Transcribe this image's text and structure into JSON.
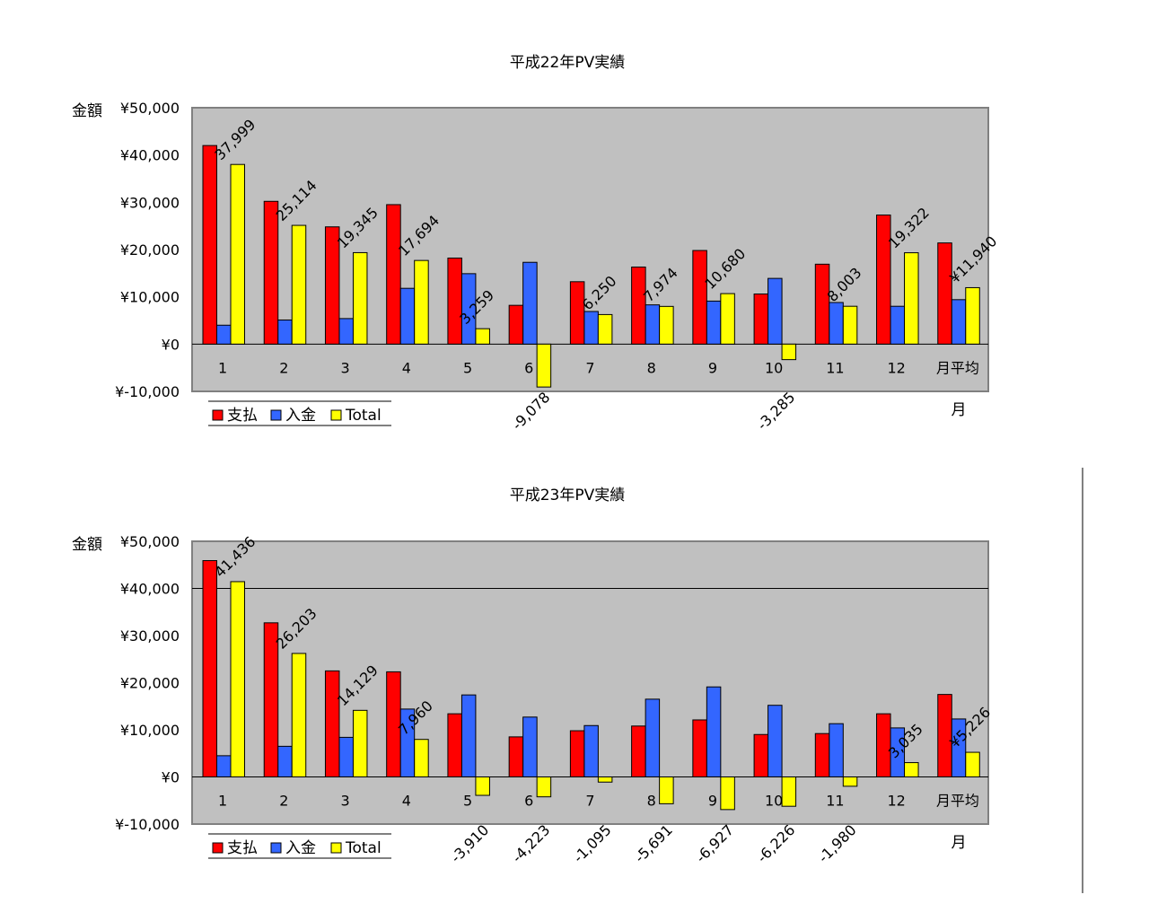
{
  "colors": {
    "shihara": "#ff0000",
    "nyukin": "#3366ff",
    "total": "#ffff00",
    "plot_bg": "#c0c0c0",
    "negative": "#ff0000"
  },
  "chart_data": [
    {
      "type": "bar",
      "title": "平成22年PV実績",
      "ylabel": "金額",
      "xlabel": "月",
      "ylim": [
        -10000,
        50000
      ],
      "yticks": [
        "¥50,000",
        "¥40,000",
        "¥30,000",
        "¥20,000",
        "¥10,000",
        "¥0",
        "¥-10,000"
      ],
      "categories": [
        "1",
        "2",
        "3",
        "4",
        "5",
        "6",
        "7",
        "8",
        "9",
        "10",
        "11",
        "12",
        "月平均"
      ],
      "legend": [
        "支払",
        "入金",
        "Total"
      ],
      "legend_position": "bottom-left",
      "series": [
        {
          "name": "支払",
          "values": [
            42000,
            30200,
            24800,
            29500,
            18200,
            8200,
            13200,
            16300,
            19800,
            10600,
            16900,
            27300,
            21400
          ]
        },
        {
          "name": "入金",
          "values": [
            4000,
            5100,
            5400,
            11800,
            14900,
            17300,
            6900,
            8300,
            9100,
            13900,
            8800,
            8000,
            9400
          ]
        },
        {
          "name": "Total",
          "values": [
            37999,
            25114,
            19345,
            17694,
            3259,
            -9078,
            6250,
            7974,
            10680,
            -3285,
            8003,
            19322,
            11940
          ]
        }
      ],
      "data_labels": [
        "37,999",
        "25,114",
        "19,345",
        "17,694",
        "3,259",
        "-9,078",
        "6,250",
        "7,974",
        "10,680",
        "-3,285",
        "8,003",
        "19,322",
        "¥11,940"
      ]
    },
    {
      "type": "bar",
      "title": "平成23年PV実績",
      "ylabel": "金額",
      "xlabel": "月",
      "ylim": [
        -10000,
        50000
      ],
      "yticks": [
        "¥50,000",
        "¥40,000",
        "¥30,000",
        "¥20,000",
        "¥10,000",
        "¥0",
        "¥-10,000"
      ],
      "categories": [
        "1",
        "2",
        "3",
        "4",
        "5",
        "6",
        "7",
        "8",
        "9",
        "10",
        "11",
        "12",
        "月平均"
      ],
      "legend": [
        "支払",
        "入金",
        "Total"
      ],
      "legend_position": "bottom-left",
      "series": [
        {
          "name": "支払",
          "values": [
            45900,
            32700,
            22500,
            22300,
            13400,
            8500,
            9800,
            10800,
            12100,
            9000,
            9200,
            13400,
            17500
          ]
        },
        {
          "name": "入金",
          "values": [
            4500,
            6500,
            8400,
            14400,
            17400,
            12700,
            10900,
            16500,
            19100,
            15200,
            11300,
            10400,
            12300
          ]
        },
        {
          "name": "Total",
          "values": [
            41436,
            26203,
            14129,
            7960,
            -3910,
            -4223,
            -1095,
            -5691,
            -6927,
            -6226,
            -1980,
            3035,
            5226
          ]
        }
      ],
      "data_labels": [
        "41,436",
        "26,203",
        "14,129",
        "7,960",
        "-3,910",
        "-4,223",
        "-1,095",
        "-5,691",
        "-6,927",
        "-6,226",
        "-1,980",
        "3,035",
        "¥5,226"
      ]
    }
  ]
}
